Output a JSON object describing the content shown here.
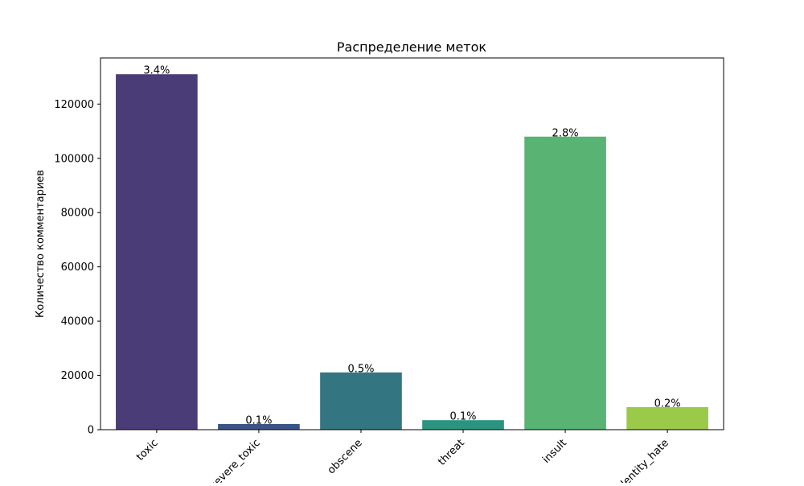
{
  "chart_data": {
    "type": "bar",
    "title": "Распределение меток",
    "xlabel": "",
    "ylabel": "Количество комментариев",
    "categories": [
      "toxic",
      "severe_toxic",
      "obscene",
      "threat",
      "insult",
      "identity_hate"
    ],
    "values": [
      131000,
      2100,
      21100,
      3500,
      108000,
      8300
    ],
    "bar_labels": [
      "3.4%",
      "0.1%",
      "0.5%",
      "0.1%",
      "2.8%",
      "0.2%"
    ],
    "colors": [
      "#4a3c77",
      "#3a5585",
      "#337681",
      "#2a9480",
      "#59b373",
      "#9bc94a"
    ],
    "ylim": [
      0,
      137000
    ],
    "yticks": [
      0,
      20000,
      40000,
      60000,
      80000,
      100000,
      120000
    ],
    "ytick_labels": [
      "0",
      "20000",
      "40000",
      "60000",
      "80000",
      "100000",
      "120000"
    ],
    "grid": false,
    "legend": "none",
    "xtick_rotation_deg": 45
  }
}
